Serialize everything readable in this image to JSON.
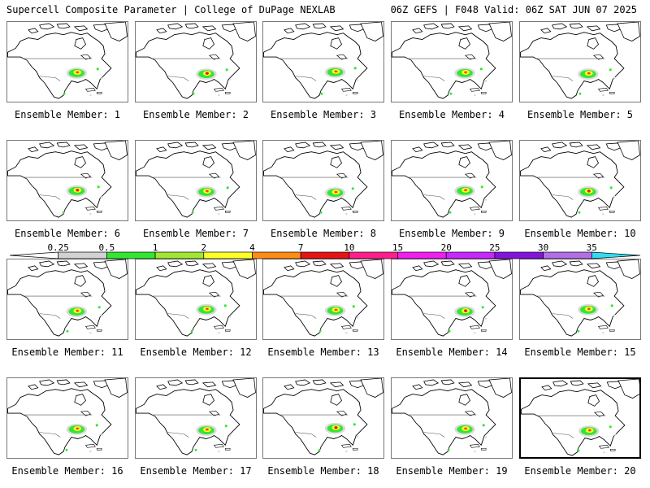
{
  "header": {
    "left_title": "Supercell Composite Parameter | College of DuPage NEXLAB",
    "right_title": "06Z GEFS | F048 Valid: 06Z SAT JUN 07 2025"
  },
  "selected_member": "Ensemble Member: 20",
  "members": [
    {
      "label": "Ensemble Member: 1"
    },
    {
      "label": "Ensemble Member: 2"
    },
    {
      "label": "Ensemble Member: 3"
    },
    {
      "label": "Ensemble Member: 4"
    },
    {
      "label": "Ensemble Member: 5"
    },
    {
      "label": "Ensemble Member: 6"
    },
    {
      "label": "Ensemble Member: 7"
    },
    {
      "label": "Ensemble Member: 8"
    },
    {
      "label": "Ensemble Member: 9"
    },
    {
      "label": "Ensemble Member: 10"
    },
    {
      "label": "Ensemble Member: 11"
    },
    {
      "label": "Ensemble Member: 12"
    },
    {
      "label": "Ensemble Member: 13"
    },
    {
      "label": "Ensemble Member: 14"
    },
    {
      "label": "Ensemble Member: 15"
    },
    {
      "label": "Ensemble Member: 16"
    },
    {
      "label": "Ensemble Member: 17"
    },
    {
      "label": "Ensemble Member: 18"
    },
    {
      "label": "Ensemble Member: 19"
    },
    {
      "label": "Ensemble Member: 20"
    }
  ],
  "colorbar": {
    "thresholds": [
      "0.25",
      "0.5",
      "1",
      "2",
      "4",
      "7",
      "10",
      "15",
      "20",
      "25",
      "30",
      "35"
    ],
    "colors": [
      "#ffffff",
      "#d2d2d2",
      "#32e632",
      "#a0e632",
      "#ffff28",
      "#ff8c14",
      "#e61414",
      "#ff1e8c",
      "#f01ef0",
      "#c828ff",
      "#8214dc",
      "#b46ee6",
      "#32dcf0"
    ]
  },
  "map_colors": {
    "land_outline": "#000000",
    "border": "#555555",
    "low": "#d2d2d2",
    "green": "#32e632",
    "yellow": "#ffff28",
    "orange": "#ff8c14",
    "red": "#e61414"
  }
}
